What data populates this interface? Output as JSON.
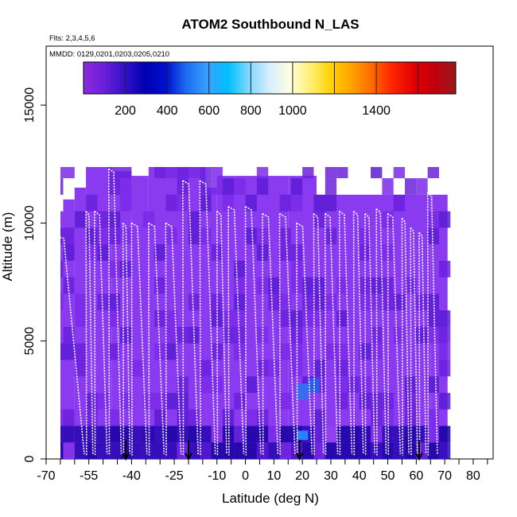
{
  "chart_data": {
    "type": "heatmap",
    "title": "ATOM2 Southbound N_LAS",
    "subtitle_lines": [
      "Flts: 2,3,4,5,6",
      "MMDD: 0129,0201,0203,0205,0210"
    ],
    "xlabel": "Latitude (deg N)",
    "ylabel": "Altitude (m)",
    "xlim": [
      -70,
      87
    ],
    "ylim": [
      0,
      17500
    ],
    "x_ticks_minor": [
      -70,
      -65,
      -60,
      -55,
      -50,
      -45,
      -40,
      -35,
      -30,
      -25,
      -20,
      -15,
      -10,
      -5,
      0,
      5,
      10,
      15,
      20,
      25,
      30,
      35,
      40,
      45,
      50,
      55,
      60,
      65,
      70,
      75,
      80,
      85
    ],
    "x_tick_labels": [
      "-70",
      "-55",
      "-40",
      "-25",
      "-10",
      "0",
      "10",
      "20",
      "30",
      "40",
      "50",
      "60",
      "70",
      "80"
    ],
    "y_ticks": [
      0,
      5000,
      10000,
      15000
    ],
    "y_tick_labels": [
      "0",
      "5000",
      "10000",
      "15000"
    ],
    "colorbar": {
      "range": [
        0,
        1780
      ],
      "tick_values": [
        200,
        400,
        600,
        800,
        1000,
        1400
      ],
      "tick_labels": [
        "200",
        "400",
        "600",
        "800",
        "1000",
        "1400"
      ],
      "divisions": [
        200,
        400,
        600,
        800,
        1000,
        1200,
        1400,
        1600
      ],
      "stops": [
        "#8a2be2",
        "#6a1fd8",
        "#3311c8",
        "#0000b0",
        "#0010d0",
        "#1e6ef0",
        "#3aa0ff",
        "#00bfff",
        "#80d8ff",
        "#d8eeff",
        "#ffffe0",
        "#ffee70",
        "#ffd000",
        "#ffa000",
        "#ff6600",
        "#ff2000",
        "#e00000",
        "#c00010",
        "#9a1a1a"
      ]
    },
    "field_background": "#8a3aef",
    "profile_latitudes": [
      -68,
      -56,
      -53,
      -48,
      -43,
      -40,
      -34,
      -28,
      -22,
      -16,
      -10,
      -6,
      0,
      6,
      12,
      18,
      24,
      28,
      33,
      38,
      42,
      46,
      50,
      55,
      58,
      61,
      64,
      68
    ],
    "track_color": "#ffffff",
    "arrow_latitudes": [
      -42,
      -20,
      19,
      61
    ],
    "arrow_color": "#000000"
  }
}
